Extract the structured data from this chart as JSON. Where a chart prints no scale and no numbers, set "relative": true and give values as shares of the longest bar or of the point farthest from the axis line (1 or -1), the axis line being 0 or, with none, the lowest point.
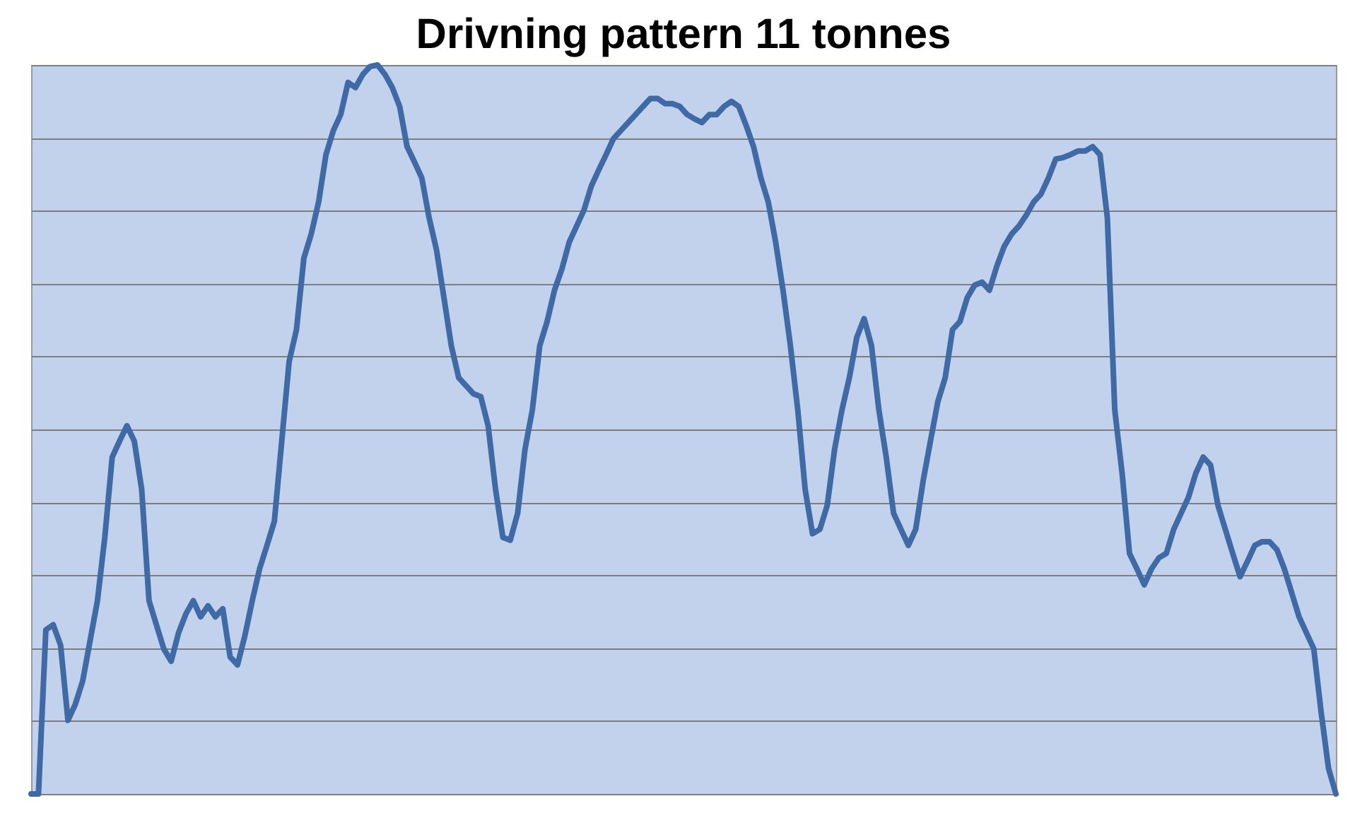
{
  "chart_data": {
    "type": "line",
    "title": "Drivning pattern 11 tonnes",
    "relative": true,
    "grid": "y",
    "marker": "none",
    "line_style": "solid",
    "series": [
      {
        "color": "#3f6aa6",
        "values": [
          0,
          0,
          0.225,
          0.232,
          0.204,
          0.101,
          0.123,
          0.155,
          0.21,
          0.265,
          0.352,
          0.462,
          0.484,
          0.505,
          0.484,
          0.418,
          0.265,
          0.232,
          0.199,
          0.182,
          0.221,
          0.247,
          0.265,
          0.243,
          0.258,
          0.243,
          0.254,
          0.188,
          0.177,
          0.217,
          0.265,
          0.309,
          0.341,
          0.374,
          0.484,
          0.593,
          0.637,
          0.735,
          0.768,
          0.812,
          0.877,
          0.91,
          0.932,
          0.976,
          0.969,
          0.987,
          0.998,
          1,
          0.987,
          0.969,
          0.943,
          0.888,
          0.867,
          0.845,
          0.79,
          0.746,
          0.681,
          0.615,
          0.571,
          0.56,
          0.549,
          0.545,
          0.505,
          0.418,
          0.352,
          0.348,
          0.385,
          0.473,
          0.527,
          0.615,
          0.648,
          0.691,
          0.72,
          0.757,
          0.779,
          0.801,
          0.834,
          0.856,
          0.877,
          0.899,
          0.91,
          0.921,
          0.932,
          0.943,
          0.954,
          0.954,
          0.947,
          0.947,
          0.943,
          0.932,
          0.926,
          0.921,
          0.932,
          0.932,
          0.943,
          0.95,
          0.943,
          0.917,
          0.888,
          0.845,
          0.812,
          0.757,
          0.691,
          0.615,
          0.527,
          0.418,
          0.357,
          0.363,
          0.396,
          0.473,
          0.527,
          0.571,
          0.626,
          0.652,
          0.615,
          0.527,
          0.462,
          0.385,
          0.363,
          0.341,
          0.363,
          0.429,
          0.484,
          0.538,
          0.571,
          0.637,
          0.648,
          0.681,
          0.698,
          0.702,
          0.691,
          0.724,
          0.751,
          0.768,
          0.779,
          0.794,
          0.812,
          0.823,
          0.845,
          0.871,
          0.873,
          0.877,
          0.882,
          0.882,
          0.888,
          0.877,
          0.79,
          0.527,
          0.44,
          0.33,
          0.309,
          0.287,
          0.309,
          0.324,
          0.33,
          0.363,
          0.385,
          0.407,
          0.44,
          0.462,
          0.451,
          0.396,
          0.363,
          0.33,
          0.298,
          0.319,
          0.341,
          0.346,
          0.346,
          0.335,
          0.309,
          0.276,
          0.243,
          0.221,
          0.199,
          0.112,
          0.035,
          0
        ]
      }
    ]
  }
}
